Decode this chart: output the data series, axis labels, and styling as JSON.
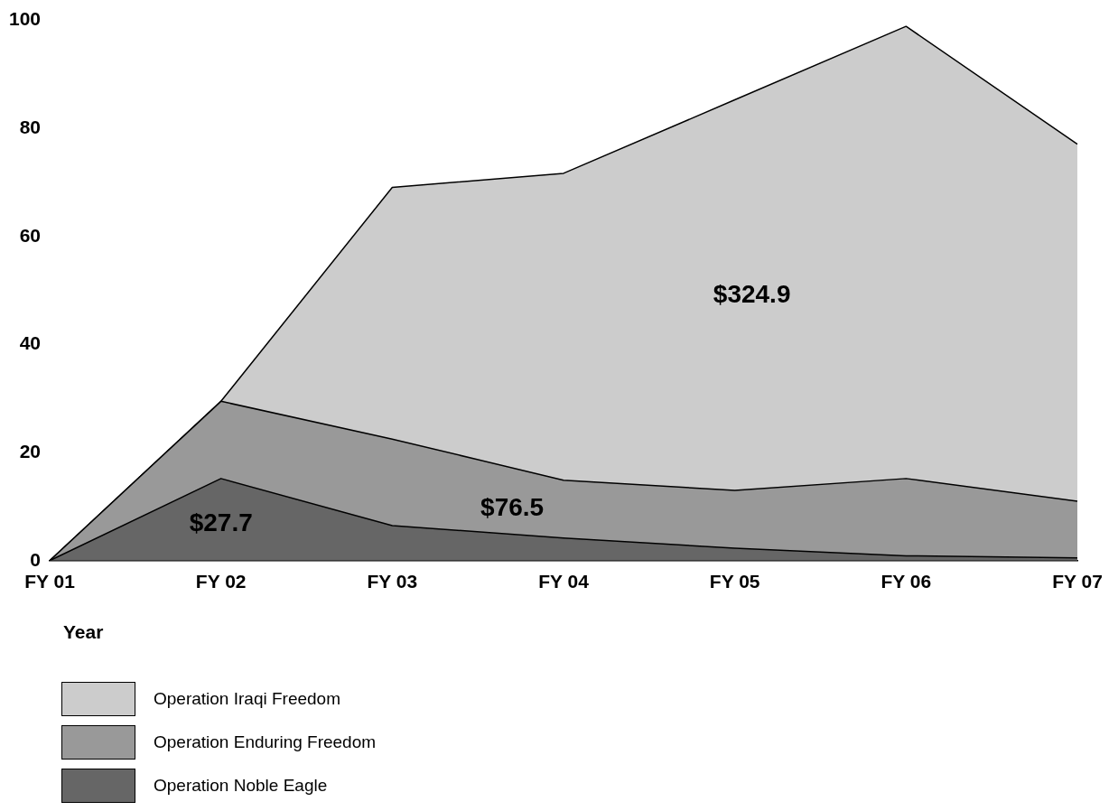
{
  "chart_data": {
    "type": "area",
    "stacked": true,
    "xlabel": "Year",
    "categories": [
      "FY 01",
      "FY 02",
      "FY 03",
      "FY 04",
      "FY 05",
      "FY 06",
      "FY 07"
    ],
    "series": [
      {
        "name": "Operation Noble Eagle",
        "color": "#666666",
        "values": [
          0,
          15.2,
          6.5,
          4.2,
          2.3,
          0.9,
          0.5
        ]
      },
      {
        "name": "Operation Enduring Freedom",
        "color": "#999999",
        "values": [
          0,
          14.3,
          16.0,
          10.7,
          10.7,
          14.3,
          10.5
        ]
      },
      {
        "name": "Operation Iraqi Freedom",
        "color": "#cccccc",
        "values": [
          0,
          0,
          46.6,
          56.8,
          72.3,
          83.7,
          66.1
        ]
      }
    ],
    "ylim": [
      0,
      100
    ],
    "yticks": [
      0,
      20,
      40,
      60,
      80,
      100
    ],
    "grid": false,
    "legend": "bottom left",
    "annotations": [
      "$27.7",
      "$76.5",
      "$324.9"
    ]
  }
}
